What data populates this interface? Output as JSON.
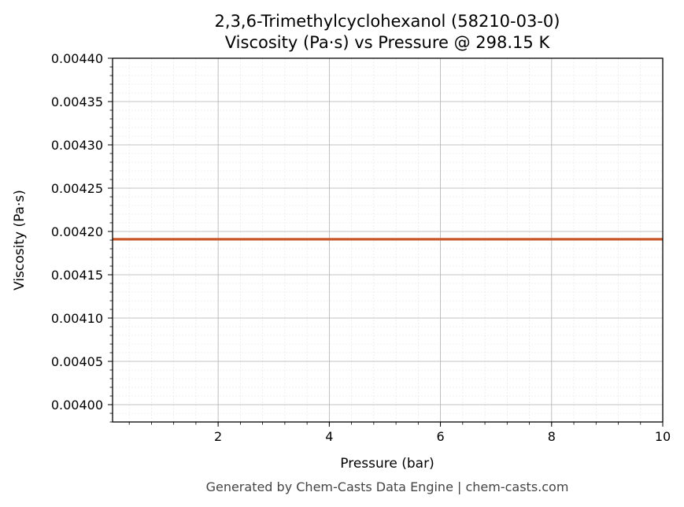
{
  "chart_data": {
    "type": "line",
    "title": "2,3,6-Trimethylcyclohexanol (58210-03-0)",
    "subtitle": "Viscosity (Pa·s) vs Pressure @ 298.15 K",
    "xlabel": "Pressure (bar)",
    "ylabel": "Viscosity (Pa·s)",
    "xlim": [
      0.1,
      10
    ],
    "ylim": [
      0.00398,
      0.0044
    ],
    "x_ticks": [
      2,
      4,
      6,
      8,
      10
    ],
    "x_tick_labels": [
      "2",
      "4",
      "6",
      "8",
      "10"
    ],
    "y_ticks": [
      0.004,
      0.00405,
      0.0041,
      0.00415,
      0.0042,
      0.00425,
      0.0043,
      0.00435,
      0.0044
    ],
    "y_tick_labels": [
      "0.00400",
      "0.00405",
      "0.00410",
      "0.00415",
      "0.00420",
      "0.00425",
      "0.00430",
      "0.00435",
      "0.00440"
    ],
    "grid": true,
    "series": [
      {
        "color": "#c8582a",
        "x": [
          0.1,
          1,
          2,
          3,
          4,
          5,
          6,
          7,
          8,
          9,
          10
        ],
        "y": [
          0.004191,
          0.004191,
          0.004191,
          0.004191,
          0.004191,
          0.004191,
          0.004191,
          0.004191,
          0.004191,
          0.004191,
          0.004191
        ]
      }
    ]
  },
  "footer": "Generated by Chem-Casts Data Engine | chem-casts.com"
}
